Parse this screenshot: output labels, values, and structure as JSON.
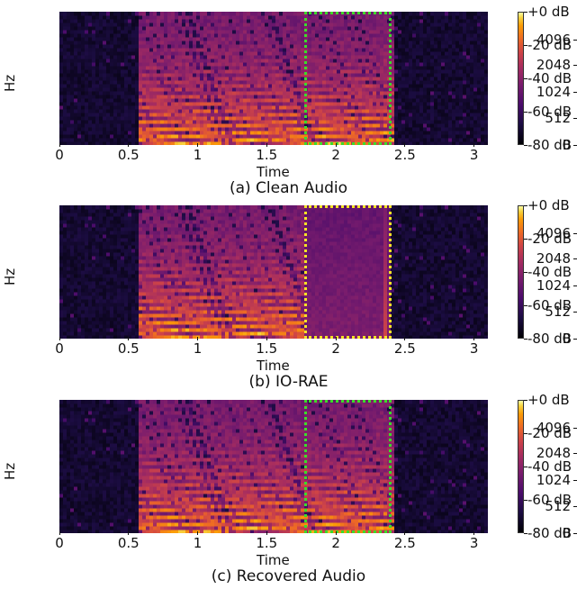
{
  "chart_data": [
    {
      "type": "heatmap",
      "title": "",
      "caption": "(a) Clean Audio",
      "xlabel": "Time",
      "ylabel": "Hz",
      "xlim": [
        0,
        3.1
      ],
      "x_ticks": [
        "0",
        "0.5",
        "1",
        "1.5",
        "2",
        "2.5",
        "3"
      ],
      "y_ticks": [
        "0",
        "512",
        "1024",
        "2048",
        "4096"
      ],
      "colorbar_ticks": [
        "+0 dB",
        "-20 dB",
        "-40 dB",
        "-60 dB",
        "-80 dB"
      ],
      "colorbar_range": [
        -80,
        0
      ],
      "highlight": {
        "x": [
          1.77,
          2.4
        ],
        "color": "#3cdc2a",
        "style": "dotted"
      },
      "speech_region": [
        0.57,
        2.42
      ],
      "fill_region": false
    },
    {
      "type": "heatmap",
      "title": "",
      "caption": "(b) IO-RAE",
      "xlabel": "Time",
      "ylabel": "Hz",
      "xlim": [
        0,
        3.1
      ],
      "x_ticks": [
        "0",
        "0.5",
        "1",
        "1.5",
        "2",
        "2.5",
        "3"
      ],
      "y_ticks": [
        "0",
        "512",
        "1024",
        "2048",
        "4096"
      ],
      "colorbar_ticks": [
        "+0 dB",
        "-20 dB",
        "-40 dB",
        "-60 dB",
        "-80 dB"
      ],
      "colorbar_range": [
        -80,
        0
      ],
      "highlight": {
        "x": [
          1.77,
          2.4
        ],
        "color": "#f4e325",
        "style": "dotted"
      },
      "speech_region": [
        0.57,
        1.77
      ],
      "fill_region": true
    },
    {
      "type": "heatmap",
      "title": "",
      "caption": "(c) Recovered Audio",
      "xlabel": "Time",
      "ylabel": "Hz",
      "xlim": [
        0,
        3.1
      ],
      "x_ticks": [
        "0",
        "0.5",
        "1",
        "1.5",
        "2",
        "2.5",
        "3"
      ],
      "y_ticks": [
        "0",
        "512",
        "1024",
        "2048",
        "4096"
      ],
      "colorbar_ticks": [
        "+0 dB",
        "-20 dB",
        "-40 dB",
        "-60 dB",
        "-80 dB"
      ],
      "colorbar_range": [
        -80,
        0
      ],
      "highlight": {
        "x": [
          1.77,
          2.4
        ],
        "color": "#3cdc2a",
        "style": "dotted"
      },
      "speech_region": [
        0.57,
        2.42
      ],
      "fill_region": false
    }
  ]
}
